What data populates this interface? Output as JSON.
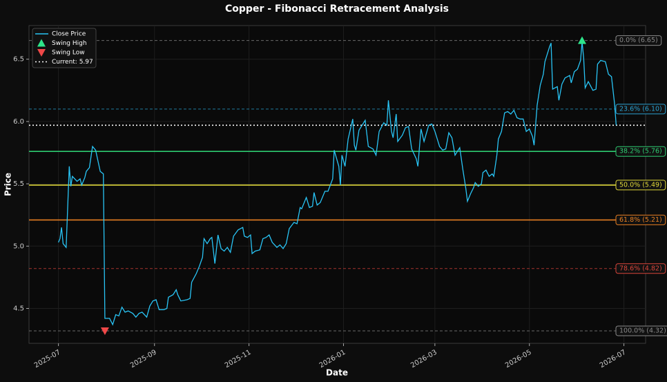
{
  "chart_data": {
    "type": "line",
    "title": "Copper - Fibonacci Retracement Analysis",
    "xlabel": "Date",
    "ylabel": "Price",
    "xlim": [
      "2025-06-12",
      "2026-07-15"
    ],
    "ylim": [
      4.22,
      6.77
    ],
    "xticks": [
      {
        "value": "2025-07-01",
        "label": "2025-07"
      },
      {
        "value": "2025-09-01",
        "label": "2025-09"
      },
      {
        "value": "2025-11-01",
        "label": "2025-11"
      },
      {
        "value": "2026-01-01",
        "label": "2026-01"
      },
      {
        "value": "2026-03-01",
        "label": "2026-03"
      },
      {
        "value": "2026-05-01",
        "label": "2026-05"
      },
      {
        "value": "2026-07-01",
        "label": "2026-07"
      }
    ],
    "yticks": [
      4.5,
      {
        "value": 5.0,
        "label": "5.0"
      },
      5.5,
      {
        "value": 6.0,
        "label": "6.0"
      },
      6.5
    ],
    "grid": true,
    "legend": "upper left",
    "series": [
      {
        "name": "Close Price",
        "color": "#29c5f6",
        "x": [
          "2025-07-01",
          "2025-07-02",
          "2025-07-03",
          "2025-07-04",
          "2025-07-06",
          "2025-07-08",
          "2025-07-09",
          "2025-07-10",
          "2025-07-13",
          "2025-07-15",
          "2025-07-16",
          "2025-07-18",
          "2025-07-19",
          "2025-07-21",
          "2025-07-23",
          "2025-07-25",
          "2025-07-28",
          "2025-07-30",
          "2025-07-31",
          "2025-08-03",
          "2025-08-05",
          "2025-08-07",
          "2025-08-09",
          "2025-08-11",
          "2025-08-13",
          "2025-08-15",
          "2025-08-18",
          "2025-08-20",
          "2025-08-22",
          "2025-08-24",
          "2025-08-27",
          "2025-08-29",
          "2025-08-31",
          "2025-09-02",
          "2025-09-04",
          "2025-09-07",
          "2025-09-09",
          "2025-09-10",
          "2025-09-13",
          "2025-09-15",
          "2025-09-16",
          "2025-09-18",
          "2025-09-22",
          "2025-09-24",
          "2025-09-25",
          "2025-09-28",
          "2025-09-30",
          "2025-10-02",
          "2025-10-03",
          "2025-10-05",
          "2025-10-07",
          "2025-10-08",
          "2025-10-10",
          "2025-10-12",
          "2025-10-14",
          "2025-10-16",
          "2025-10-18",
          "2025-10-20",
          "2025-10-22",
          "2025-10-25",
          "2025-10-28",
          "2025-10-29",
          "2025-10-31",
          "2025-11-02",
          "2025-11-03",
          "2025-11-05",
          "2025-11-08",
          "2025-11-10",
          "2025-11-12",
          "2025-11-14",
          "2025-11-16",
          "2025-11-19",
          "2025-11-21",
          "2025-11-23",
          "2025-11-25",
          "2025-11-27",
          "2025-11-30",
          "2025-12-02",
          "2025-12-04",
          "2025-12-05",
          "2025-12-08",
          "2025-12-10",
          "2025-12-12",
          "2025-12-13",
          "2025-12-15",
          "2025-12-17",
          "2025-12-20",
          "2025-12-22",
          "2025-12-25",
          "2025-12-26",
          "2025-12-29",
          "2025-12-30",
          "2025-12-31",
          "2026-01-02",
          "2026-01-04",
          "2026-01-07",
          "2026-01-08",
          "2026-01-09",
          "2026-01-11",
          "2026-01-13",
          "2026-01-15",
          "2026-01-17",
          "2026-01-20",
          "2026-01-22",
          "2026-01-24",
          "2026-01-27",
          "2026-01-29",
          "2026-01-30",
          "2026-02-01",
          "2026-02-02",
          "2026-02-04",
          "2026-02-05",
          "2026-02-08",
          "2026-02-10",
          "2026-02-12",
          "2026-02-14",
          "2026-02-17",
          "2026-02-18",
          "2026-02-20",
          "2026-02-22",
          "2026-02-25",
          "2026-02-27",
          "2026-03-01",
          "2026-03-04",
          "2026-03-06",
          "2026-03-08",
          "2026-03-10",
          "2026-03-12",
          "2026-03-14",
          "2026-03-17",
          "2026-03-19",
          "2026-03-21",
          "2026-03-22",
          "2026-03-24",
          "2026-03-26",
          "2026-03-27",
          "2026-03-29",
          "2026-03-31",
          "2026-04-01",
          "2026-04-03",
          "2026-04-05",
          "2026-04-07",
          "2026-04-08",
          "2026-04-10",
          "2026-04-11",
          "2026-04-13",
          "2026-04-15",
          "2026-04-17",
          "2026-04-19",
          "2026-04-21",
          "2026-04-23",
          "2026-04-25",
          "2026-04-27",
          "2026-04-29",
          "2026-05-01",
          "2026-05-03",
          "2026-05-04",
          "2026-05-06",
          "2026-05-08",
          "2026-05-10",
          "2026-05-11",
          "2026-05-14",
          "2026-05-15",
          "2026-05-16",
          "2026-05-19",
          "2026-05-20",
          "2026-05-22",
          "2026-05-24",
          "2026-05-27",
          "2026-05-28",
          "2026-05-30",
          "2026-06-01",
          "2026-06-03",
          "2026-06-04",
          "2026-06-05",
          "2026-06-06",
          "2026-06-08",
          "2026-06-11",
          "2026-06-13",
          "2026-06-14",
          "2026-06-16",
          "2026-06-19",
          "2026-06-21",
          "2026-06-23",
          "2026-06-25",
          "2026-06-26"
        ],
        "values": [
          5.03,
          5.06,
          5.15,
          5.02,
          4.99,
          5.64,
          5.48,
          5.56,
          5.52,
          5.54,
          5.49,
          5.55,
          5.6,
          5.63,
          5.8,
          5.77,
          5.6,
          5.58,
          4.42,
          4.42,
          4.37,
          4.45,
          4.44,
          4.51,
          4.47,
          4.48,
          4.46,
          4.43,
          4.46,
          4.47,
          4.43,
          4.52,
          4.56,
          4.57,
          4.49,
          4.49,
          4.5,
          4.59,
          4.61,
          4.65,
          4.61,
          4.56,
          4.57,
          4.58,
          4.71,
          4.78,
          4.84,
          4.91,
          5.06,
          5.02,
          5.06,
          5.07,
          4.86,
          5.09,
          4.98,
          4.96,
          4.99,
          4.95,
          5.08,
          5.13,
          5.15,
          5.08,
          5.07,
          5.09,
          4.94,
          4.96,
          4.97,
          5.06,
          5.07,
          5.09,
          5.03,
          4.99,
          5.01,
          4.98,
          5.02,
          5.14,
          5.19,
          5.18,
          5.31,
          5.3,
          5.39,
          5.31,
          5.32,
          5.43,
          5.33,
          5.35,
          5.44,
          5.44,
          5.54,
          5.77,
          5.64,
          5.49,
          5.73,
          5.64,
          5.86,
          6.02,
          5.81,
          5.77,
          5.93,
          5.97,
          6.01,
          5.8,
          5.78,
          5.73,
          5.92,
          5.99,
          5.97,
          6.17,
          5.92,
          5.87,
          6.06,
          5.84,
          5.89,
          5.95,
          5.96,
          5.78,
          5.7,
          5.64,
          5.94,
          5.84,
          5.97,
          5.98,
          5.92,
          5.8,
          5.77,
          5.78,
          5.91,
          5.87,
          5.73,
          5.79,
          5.62,
          5.46,
          5.36,
          5.42,
          5.47,
          5.51,
          5.48,
          5.5,
          5.59,
          5.61,
          5.56,
          5.58,
          5.56,
          5.73,
          5.86,
          5.92,
          6.07,
          6.08,
          6.06,
          6.09,
          6.03,
          6.02,
          6.02,
          5.92,
          5.94,
          5.88,
          5.81,
          6.13,
          6.29,
          6.38,
          6.48,
          6.6,
          6.63,
          6.26,
          6.28,
          6.17,
          6.3,
          6.35,
          6.37,
          6.31,
          6.4,
          6.42,
          6.49,
          6.64,
          6.51,
          6.27,
          6.32,
          6.25,
          6.26,
          6.46,
          6.49,
          6.48,
          6.38,
          6.36,
          6.14,
          5.97
        ]
      }
    ],
    "swing_high": {
      "name": "Swing High",
      "x": "2026-06-04",
      "value": 6.65,
      "color": "#2ee58a"
    },
    "swing_low": {
      "name": "Swing Low",
      "x": "2025-07-31",
      "value": 4.32,
      "color": "#f04848"
    },
    "current": {
      "name": "Current: 5.97",
      "value": 5.97,
      "color": "#ffffff"
    },
    "fib_levels": [
      {
        "label": "0.0% (6.65)",
        "value": 6.65,
        "color": "#8a8a8a",
        "style": "dashed"
      },
      {
        "label": "23.6% (6.10)",
        "value": 6.1,
        "color": "#2aa0d0",
        "style": "dashed"
      },
      {
        "label": "38.2% (5.76)",
        "value": 5.76,
        "color": "#2ecc71",
        "style": "solid"
      },
      {
        "label": "50.0% (5.49)",
        "value": 5.49,
        "color": "#e0d83a",
        "style": "solid"
      },
      {
        "label": "61.8% (5.21)",
        "value": 5.21,
        "color": "#e67e22",
        "style": "solid"
      },
      {
        "label": "78.6% (4.82)",
        "value": 4.82,
        "color": "#d9453a",
        "style": "dashed"
      },
      {
        "label": "100.0% (4.32)",
        "value": 4.32,
        "color": "#8a8a8a",
        "style": "dashed"
      }
    ]
  }
}
